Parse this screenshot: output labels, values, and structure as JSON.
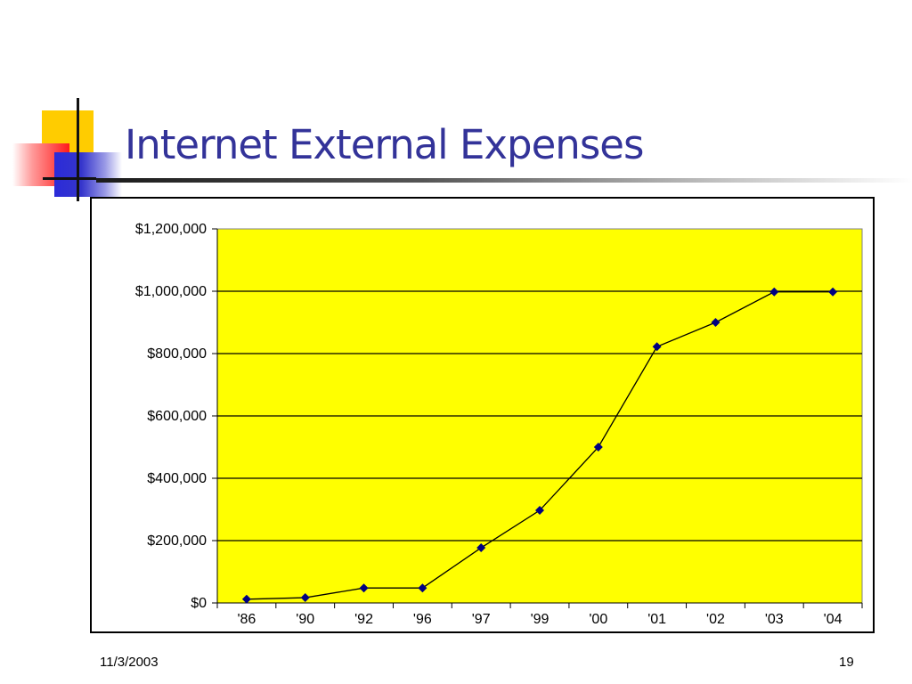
{
  "slide": {
    "title": "Internet External Expenses",
    "date": "11/3/2003",
    "page_number": "19"
  },
  "colors": {
    "title": "#333399",
    "plot_background": "#ffff00",
    "line": "#000000",
    "marker": "#000080",
    "gridline": "#000000"
  },
  "chart_data": {
    "type": "line",
    "title": "",
    "xlabel": "",
    "ylabel": "",
    "categories": [
      "'86",
      "'90",
      "'92",
      "'96",
      "'97",
      "'99",
      "'00",
      "'01",
      "'02",
      "'03",
      "'04"
    ],
    "series": [
      {
        "name": "",
        "values": [
          12000,
          17000,
          48000,
          48000,
          177000,
          297000,
          500000,
          822000,
          900000,
          998000,
          998000
        ]
      }
    ],
    "ylim": [
      0,
      1200000
    ],
    "y_ticks": [
      0,
      200000,
      400000,
      600000,
      800000,
      1000000,
      1200000
    ],
    "y_tick_labels": [
      "$0",
      "$200,000",
      "$400,000",
      "$600,000",
      "$800,000",
      "$1,000,000",
      "$1,200,000"
    ],
    "grid": true,
    "marker": "diamond",
    "legend": "none"
  }
}
